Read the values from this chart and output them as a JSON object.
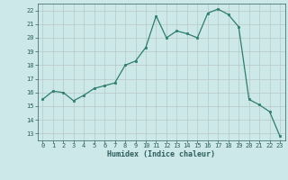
{
  "x": [
    0,
    1,
    2,
    3,
    4,
    5,
    6,
    7,
    8,
    9,
    10,
    11,
    12,
    13,
    14,
    15,
    16,
    17,
    18,
    19,
    20,
    21,
    22,
    23
  ],
  "y": [
    15.5,
    16.1,
    16.0,
    15.4,
    15.8,
    16.3,
    16.5,
    16.7,
    18.0,
    18.3,
    19.3,
    21.6,
    20.0,
    20.5,
    20.3,
    20.0,
    21.8,
    22.1,
    21.7,
    20.8,
    15.5,
    15.1,
    14.6,
    12.8
  ],
  "line_color": "#2e7d6e",
  "marker_color": "#2e7d6e",
  "bg_color": "#cce8e8",
  "grid_major_color": "#b8c8c8",
  "grid_minor_color": "#d4dcdc",
  "xlabel": "Humidex (Indice chaleur)",
  "xlabel_color": "#2e5d5d",
  "tick_color": "#2e5d5d",
  "ylim": [
    12.5,
    22.5
  ],
  "xlim": [
    -0.5,
    23.5
  ],
  "yticks": [
    13,
    14,
    15,
    16,
    17,
    18,
    19,
    20,
    21,
    22
  ],
  "xticks": [
    0,
    1,
    2,
    3,
    4,
    5,
    6,
    7,
    8,
    9,
    10,
    11,
    12,
    13,
    14,
    15,
    16,
    17,
    18,
    19,
    20,
    21,
    22,
    23
  ]
}
